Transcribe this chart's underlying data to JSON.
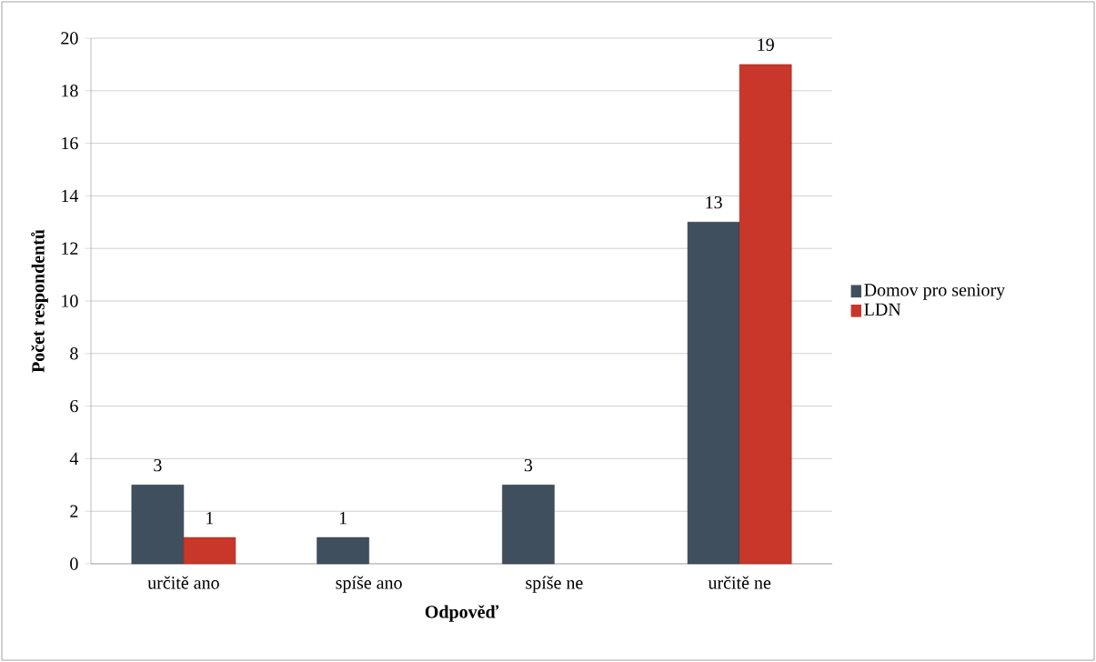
{
  "chart_data": {
    "type": "bar",
    "xlabel": "Odpověď",
    "ylabel": "Počet respondentů",
    "categories": [
      "určitě ano",
      "spíše ano",
      "spíše ne",
      "určitě ne"
    ],
    "series": [
      {
        "name": "Domov pro seniory",
        "color": "#3f4f5e",
        "values": [
          3,
          1,
          3,
          13
        ]
      },
      {
        "name": "LDN",
        "color": "#c8372a",
        "values": [
          1,
          null,
          null,
          19
        ]
      }
    ],
    "ylim": [
      0,
      20
    ],
    "yticks": [
      0,
      2,
      4,
      6,
      8,
      10,
      12,
      14,
      16,
      18,
      20
    ],
    "grid": "y",
    "legend": "right",
    "data_labels": true
  }
}
